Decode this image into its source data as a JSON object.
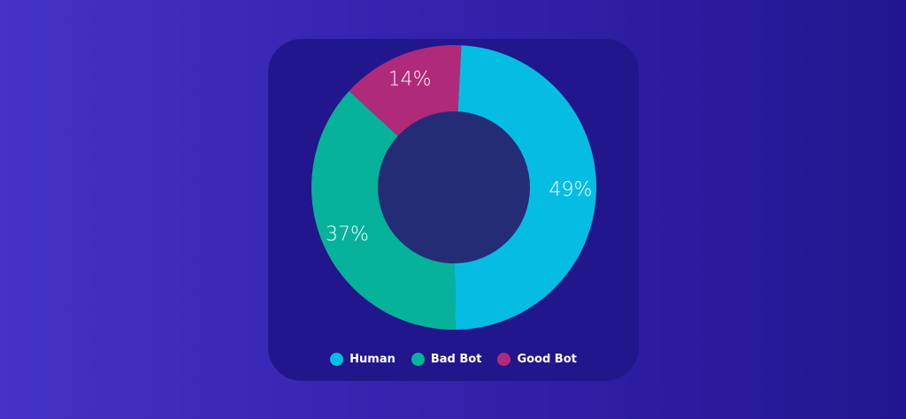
{
  "chart_data": {
    "type": "pie",
    "categories": [
      "Human",
      "Bad Bot",
      "Good Bot"
    ],
    "values": [
      49,
      37,
      14
    ],
    "value_labels": [
      "49%",
      "37%",
      "14%"
    ],
    "colors": [
      "#05bde3",
      "#06b29a",
      "#b02a7a"
    ],
    "donut_hole_color": "#252c76",
    "legend_position": "bottom"
  }
}
